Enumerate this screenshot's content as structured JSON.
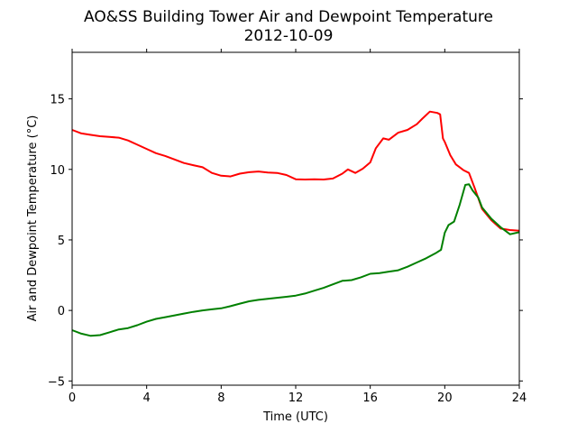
{
  "chart_data": {
    "type": "line",
    "title": "AO&SS Building Tower Air and Dewpoint Temperature",
    "subtitle": "2012-10-09",
    "xlabel": "Time (UTC)",
    "ylabel": "Air and Dewpoint Temperature (°C)",
    "xlim": [
      0,
      24
    ],
    "ylim": [
      -5.3,
      18.3
    ],
    "xticks": [
      0,
      4,
      8,
      12,
      16,
      20,
      24
    ],
    "yticks": [
      -5,
      0,
      5,
      10,
      15
    ],
    "xtick_labels": [
      "0",
      "4",
      "8",
      "12",
      "16",
      "20",
      "24"
    ],
    "ytick_labels": [
      "−5",
      "0",
      "5",
      "10",
      "15"
    ],
    "grid": false,
    "legend": false,
    "series": [
      {
        "color": "#ff0000",
        "points": [
          [
            0,
            12.8
          ],
          [
            0.5,
            12.55
          ],
          [
            1,
            12.45
          ],
          [
            1.5,
            12.35
          ],
          [
            2,
            12.3
          ],
          [
            2.5,
            12.25
          ],
          [
            3,
            12.05
          ],
          [
            3.5,
            11.75
          ],
          [
            4,
            11.45
          ],
          [
            4.5,
            11.15
          ],
          [
            5,
            10.95
          ],
          [
            5.5,
            10.7
          ],
          [
            6,
            10.45
          ],
          [
            6.5,
            10.3
          ],
          [
            7,
            10.15
          ],
          [
            7.5,
            9.75
          ],
          [
            8,
            9.55
          ],
          [
            8.5,
            9.5
          ],
          [
            9,
            9.7
          ],
          [
            9.5,
            9.8
          ],
          [
            10,
            9.85
          ],
          [
            10.5,
            9.78
          ],
          [
            11,
            9.75
          ],
          [
            11.5,
            9.6
          ],
          [
            12,
            9.3
          ],
          [
            12.5,
            9.28
          ],
          [
            13,
            9.3
          ],
          [
            13.5,
            9.28
          ],
          [
            14,
            9.35
          ],
          [
            14.5,
            9.7
          ],
          [
            14.8,
            10.0
          ],
          [
            15.2,
            9.75
          ],
          [
            15.6,
            10.05
          ],
          [
            16,
            10.5
          ],
          [
            16.3,
            11.5
          ],
          [
            16.7,
            12.2
          ],
          [
            17,
            12.1
          ],
          [
            17.5,
            12.6
          ],
          [
            18,
            12.8
          ],
          [
            18.5,
            13.2
          ],
          [
            18.8,
            13.6
          ],
          [
            19.2,
            14.1
          ],
          [
            19.6,
            14.0
          ],
          [
            19.75,
            13.9
          ],
          [
            19.9,
            12.2
          ],
          [
            20.0,
            11.95
          ],
          [
            20.3,
            11.0
          ],
          [
            20.6,
            10.35
          ],
          [
            21,
            9.95
          ],
          [
            21.3,
            9.75
          ],
          [
            21.6,
            8.7
          ],
          [
            22,
            7.2
          ],
          [
            22.5,
            6.4
          ],
          [
            23,
            5.8
          ],
          [
            23.5,
            5.7
          ],
          [
            24,
            5.65
          ]
        ]
      },
      {
        "color": "#008000",
        "points": [
          [
            0,
            -1.4
          ],
          [
            0.5,
            -1.65
          ],
          [
            1,
            -1.8
          ],
          [
            1.5,
            -1.75
          ],
          [
            2,
            -1.55
          ],
          [
            2.5,
            -1.35
          ],
          [
            3,
            -1.25
          ],
          [
            3.5,
            -1.05
          ],
          [
            4,
            -0.8
          ],
          [
            4.5,
            -0.6
          ],
          [
            5,
            -0.48
          ],
          [
            5.5,
            -0.35
          ],
          [
            6,
            -0.22
          ],
          [
            6.5,
            -0.1
          ],
          [
            7,
            0.0
          ],
          [
            7.5,
            0.08
          ],
          [
            8,
            0.15
          ],
          [
            8.5,
            0.3
          ],
          [
            9,
            0.48
          ],
          [
            9.5,
            0.65
          ],
          [
            10,
            0.75
          ],
          [
            10.5,
            0.82
          ],
          [
            11,
            0.9
          ],
          [
            11.5,
            0.97
          ],
          [
            12,
            1.05
          ],
          [
            12.5,
            1.2
          ],
          [
            13,
            1.4
          ],
          [
            13.5,
            1.6
          ],
          [
            14,
            1.85
          ],
          [
            14.5,
            2.1
          ],
          [
            15,
            2.15
          ],
          [
            15.5,
            2.35
          ],
          [
            16,
            2.6
          ],
          [
            16.5,
            2.65
          ],
          [
            17,
            2.75
          ],
          [
            17.5,
            2.85
          ],
          [
            18,
            3.1
          ],
          [
            18.5,
            3.4
          ],
          [
            19,
            3.7
          ],
          [
            19.5,
            4.05
          ],
          [
            19.8,
            4.3
          ],
          [
            20.0,
            5.5
          ],
          [
            20.2,
            6.05
          ],
          [
            20.5,
            6.3
          ],
          [
            20.8,
            7.5
          ],
          [
            21.1,
            8.9
          ],
          [
            21.3,
            8.95
          ],
          [
            21.5,
            8.5
          ],
          [
            21.8,
            8.0
          ],
          [
            22,
            7.3
          ],
          [
            22.5,
            6.5
          ],
          [
            23,
            5.9
          ],
          [
            23.5,
            5.4
          ],
          [
            24,
            5.55
          ]
        ]
      }
    ]
  }
}
